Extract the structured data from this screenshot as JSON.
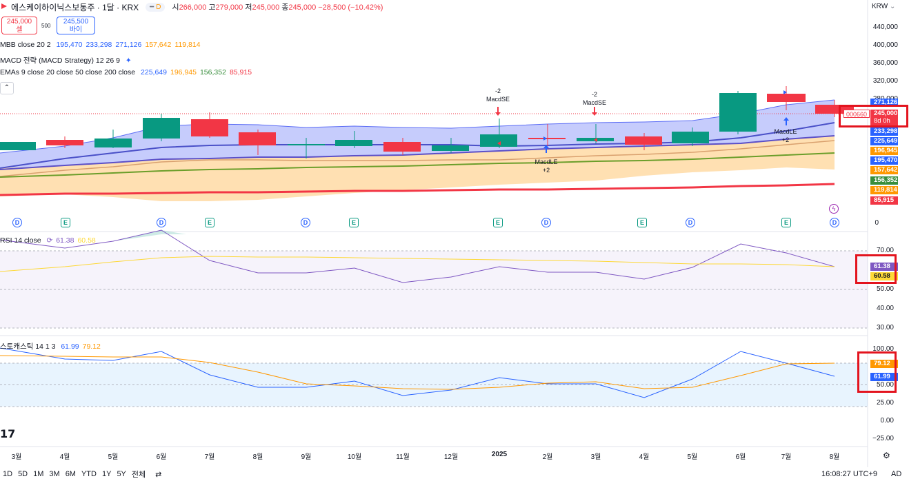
{
  "header": {
    "symbol": "에스케이하이닉스보통주 · 1달 · KRX",
    "pill_label": "D",
    "ohlc": {
      "o_label": "시",
      "o": "266,000",
      "h_label": "고",
      "h": "279,000",
      "l_label": "저",
      "l": "245,000",
      "c_label": "종",
      "c": "245,000",
      "chg": "−28,500 (−10.42%)"
    }
  },
  "trade": {
    "sell_price": "245,000",
    "sell_label": "셀",
    "qty": "500",
    "buy_price": "245,500",
    "buy_label": "바이"
  },
  "indicators": [
    {
      "label": "MBB close 20 2",
      "values": [
        "195,470",
        "233,298",
        "271,126",
        "157,642",
        "119,814"
      ],
      "colors": [
        "#2962ff",
        "#2962ff",
        "#2962ff",
        "#ff9800",
        "#ff9800"
      ]
    },
    {
      "label": "MACD 전략 (MACD Strategy) 12 26 9",
      "values": [],
      "colors": []
    },
    {
      "label": "EMAs 9 close 20 close 50 close 200 close",
      "values": [
        "225,649",
        "196,945",
        "156,352",
        "85,915"
      ],
      "colors": [
        "#2962ff",
        "#ff9800",
        "#388e3c",
        "#f23645"
      ]
    }
  ],
  "currency": "KRW",
  "price_axis": [
    "440,000",
    "400,000",
    "360,000",
    "320,000",
    "280,000",
    "0"
  ],
  "price_tags": [
    {
      "text": "271,126",
      "color": "#2962ff"
    },
    {
      "text": "245,000",
      "color": "#f23645"
    },
    {
      "text": "8d 0h",
      "color": "#f23645"
    },
    {
      "text": "233,298",
      "color": "#2962ff"
    },
    {
      "text": "225,649",
      "color": "#2962ff"
    },
    {
      "text": "196,945",
      "color": "#ff9800"
    },
    {
      "text": "195,470",
      "color": "#2962ff"
    },
    {
      "text": "157,642",
      "color": "#ff9800"
    },
    {
      "text": "156,352",
      "color": "#388e3c"
    },
    {
      "text": "119,814",
      "color": "#ff9800"
    },
    {
      "text": "85,915",
      "color": "#f23645"
    }
  ],
  "ticker_code": "000660",
  "signals": [
    {
      "text1": "-2",
      "text2": "MacdSE"
    },
    {
      "text1": "-2",
      "text2": "MacdSE"
    },
    {
      "text1": "MacdLE",
      "text2": "+2"
    },
    {
      "text1": "MacdLE",
      "text2": "+2"
    }
  ],
  "events": [
    "D",
    "E",
    "D",
    "E",
    "D",
    "E",
    "E",
    "D",
    "E",
    "D",
    "E",
    "D"
  ],
  "rsi": {
    "label": "RSI 14 close",
    "v1": "61.38",
    "v2": "60.58",
    "axis": [
      "70.00",
      "50.00",
      "40.00",
      "30.00"
    ]
  },
  "stoch": {
    "label": "스토캐스틱 14 1 3",
    "v1": "61.99",
    "v2": "79.12",
    "axis": [
      "100.00",
      "50.00",
      "25.00",
      "0.00",
      "−25.00"
    ]
  },
  "x_axis": [
    "3월",
    "4월",
    "5월",
    "6월",
    "7월",
    "8월",
    "9월",
    "10월",
    "11월",
    "12월",
    "2025",
    "2월",
    "3월",
    "4월",
    "5월",
    "6월",
    "7월",
    "8월"
  ],
  "bottom": {
    "ranges": [
      "1D",
      "5D",
      "1M",
      "3M",
      "6M",
      "YTD",
      "1Y",
      "5Y",
      "전체"
    ],
    "time": "16:08:27 UTC+9",
    "adj": "AD"
  },
  "tv_logo": "17"
}
